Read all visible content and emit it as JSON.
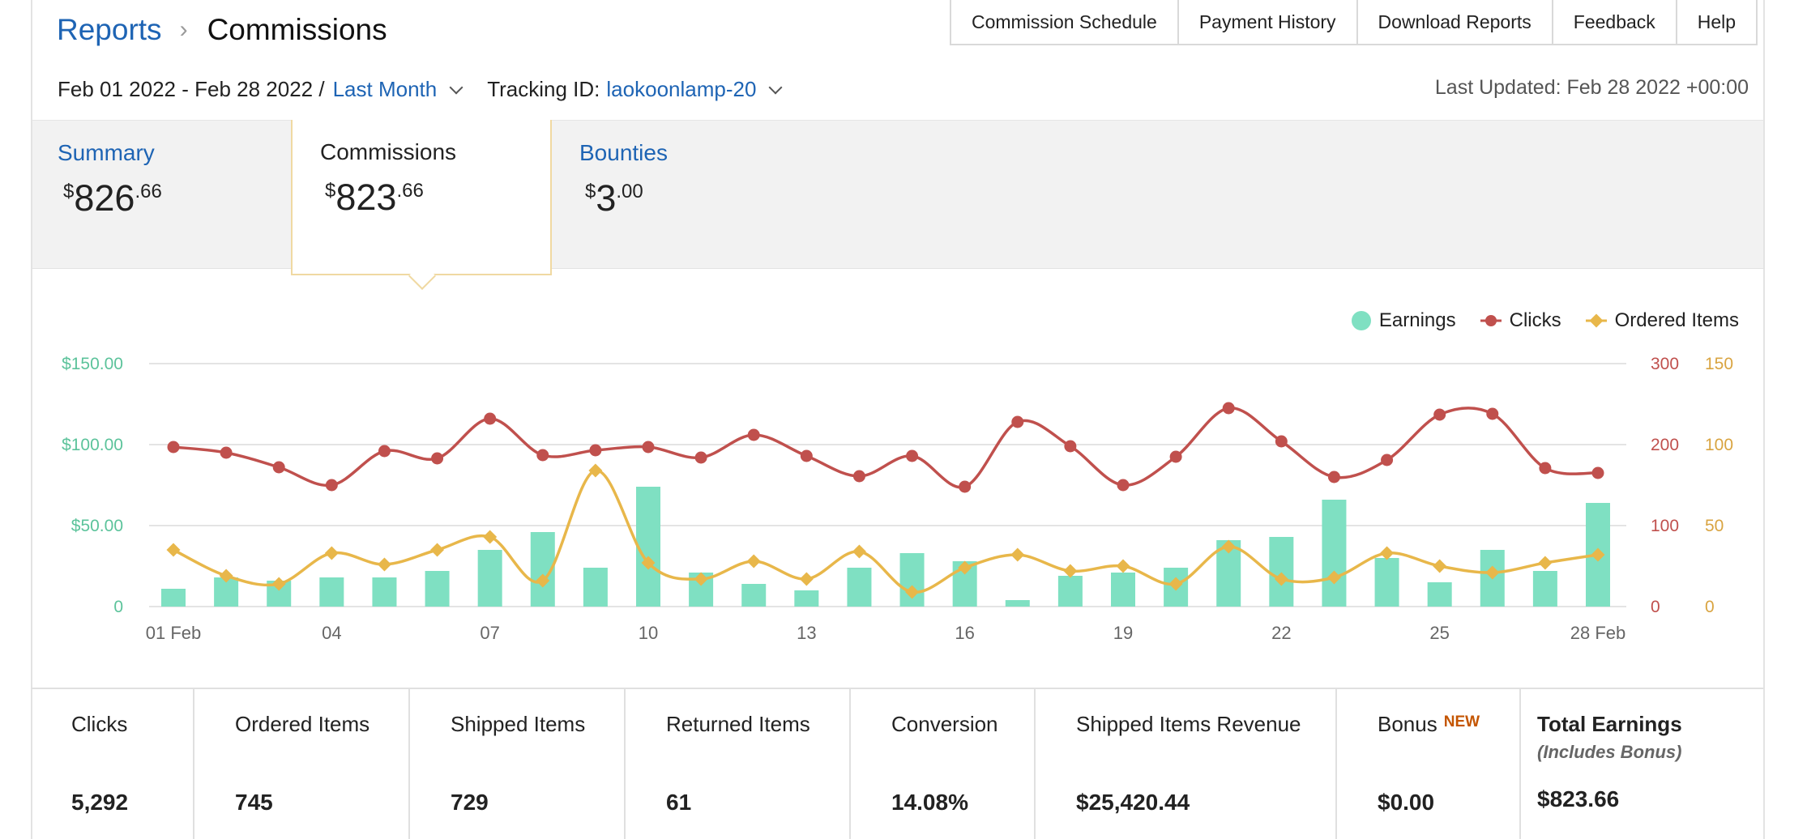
{
  "breadcrumb": {
    "parent": "Reports",
    "separator": "›",
    "current": "Commissions"
  },
  "top_nav": [
    "Commission Schedule",
    "Payment History",
    "Download Reports",
    "Feedback",
    "Help"
  ],
  "date_range": {
    "text": "Feb 01 2022 - Feb 28 2022 /",
    "preset": "Last Month"
  },
  "tracking": {
    "label": "Tracking ID:",
    "value": "laokoonlamp-20"
  },
  "last_updated": "Last Updated: Feb 28 2022 +00:00",
  "tabs": {
    "summary": {
      "label": "Summary",
      "currency": "$",
      "whole": "826",
      "cents": ".66"
    },
    "commissions": {
      "label": "Commissions",
      "currency": "$",
      "whole": "823",
      "cents": ".66"
    },
    "bounties": {
      "label": "Bounties",
      "currency": "$",
      "whole": "3",
      "cents": ".00"
    }
  },
  "legend": {
    "earnings": "Earnings",
    "clicks": "Clicks",
    "ordered": "Ordered Items"
  },
  "colors": {
    "earnings": "#7fe0c2",
    "clicks": "#c0504d",
    "ordered": "#e8b74a",
    "link": "#1e64b4",
    "earnings_axis": "#5cc39b",
    "clicks_axis": "#c0504d",
    "ordered_axis": "#d9a441"
  },
  "chart_data": {
    "type": "bar",
    "x": [
      "01 Feb",
      "02",
      "03",
      "04",
      "05",
      "06",
      "07",
      "08",
      "09",
      "10",
      "11",
      "12",
      "13",
      "14",
      "15",
      "16",
      "17",
      "18",
      "19",
      "20",
      "21",
      "22",
      "23",
      "24",
      "25",
      "26",
      "27",
      "28 Feb"
    ],
    "x_tick_labels": [
      "01 Feb",
      "04",
      "07",
      "10",
      "13",
      "16",
      "19",
      "22",
      "25",
      "28 Feb"
    ],
    "series": [
      {
        "name": "Earnings",
        "type": "bar",
        "axis": "left",
        "values": [
          11,
          18,
          16,
          18,
          18,
          22,
          35,
          46,
          24,
          74,
          21,
          14,
          10,
          24,
          33,
          28,
          4,
          19,
          21,
          24,
          41,
          43,
          66,
          30,
          15,
          35,
          22,
          64
        ]
      },
      {
        "name": "Clicks",
        "type": "line",
        "axis": "right1",
        "values": [
          197,
          190,
          172,
          150,
          192,
          183,
          232,
          187,
          193,
          197,
          184,
          212,
          186,
          161,
          186,
          148,
          228,
          198,
          150,
          185,
          245,
          204,
          160,
          181,
          237,
          238,
          171,
          165
        ]
      },
      {
        "name": "Ordered Items",
        "type": "line",
        "axis": "right2",
        "values": [
          35,
          19,
          14,
          33,
          26,
          35,
          43,
          16,
          84,
          27,
          17,
          28,
          17,
          34,
          9,
          24,
          32,
          22,
          25,
          14,
          37,
          17,
          18,
          33,
          25,
          21,
          27,
          32
        ]
      }
    ],
    "y_left": {
      "ylim": [
        0,
        150
      ],
      "ticks": [
        "0",
        "$50.00",
        "$100.00",
        "$150.00"
      ]
    },
    "y_right1": {
      "ylim": [
        0,
        300
      ],
      "ticks": [
        "0",
        "100",
        "200",
        "300"
      ]
    },
    "y_right2": {
      "ylim": [
        0,
        150
      ],
      "ticks": [
        "0",
        "50",
        "100",
        "150"
      ]
    },
    "grid": true,
    "legend_position": "top-right"
  },
  "stats": [
    {
      "label": "Clicks",
      "value": "5,292"
    },
    {
      "label": "Ordered Items",
      "value": "745"
    },
    {
      "label": "Shipped Items",
      "value": "729"
    },
    {
      "label": "Returned Items",
      "value": "61"
    },
    {
      "label": "Conversion",
      "value": "14.08%"
    },
    {
      "label": "Shipped Items Revenue",
      "value": "$25,420.44"
    },
    {
      "label": "Bonus",
      "badge": "NEW",
      "value": "$0.00"
    },
    {
      "label": "Total Earnings",
      "sublabel": "(Includes Bonus)",
      "value": "$823.66"
    }
  ]
}
